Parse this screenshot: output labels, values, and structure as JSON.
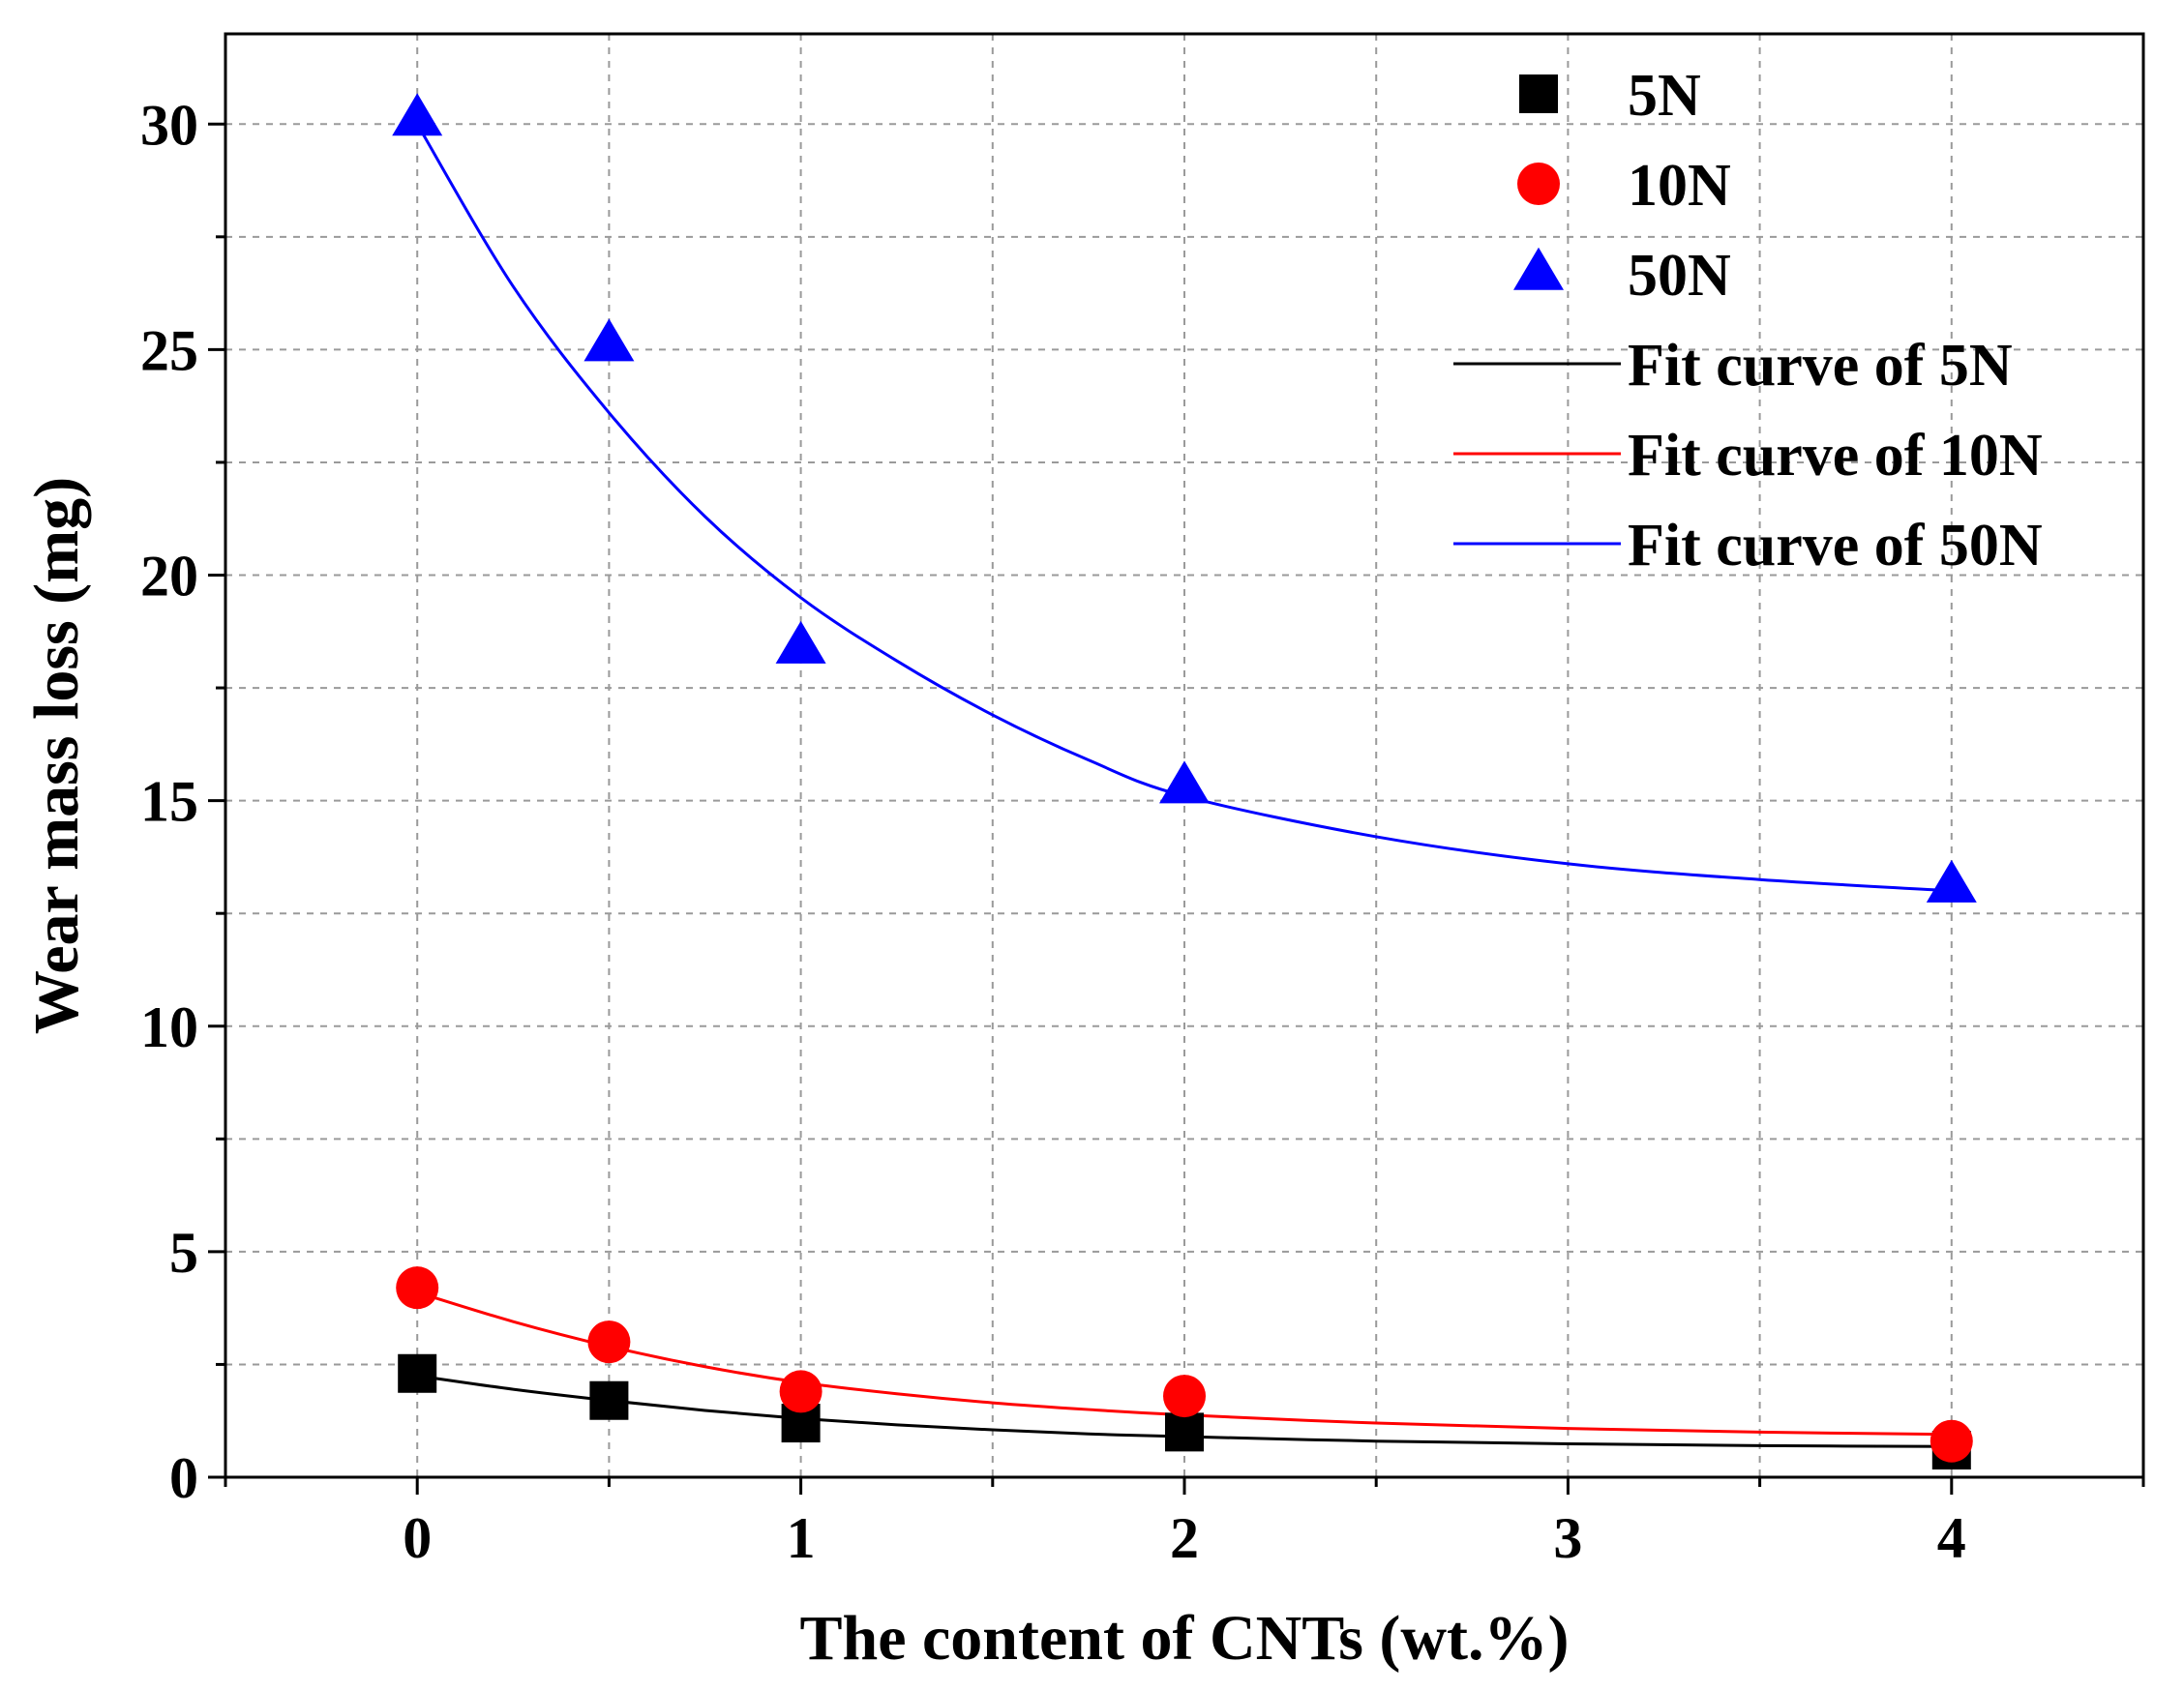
{
  "chart_data": {
    "type": "scatter",
    "title": "",
    "xlabel": "The content of CNTs (wt.%)",
    "ylabel": "Wear mass loss (mg)",
    "xlim": [
      -0.5,
      4.5
    ],
    "ylim": [
      0,
      32
    ],
    "xticks": [
      0,
      1,
      2,
      3,
      4
    ],
    "xtick_labels": [
      "0",
      "1",
      "2",
      "3",
      "4"
    ],
    "yticks": [
      0,
      5,
      10,
      15,
      20,
      25,
      30
    ],
    "ytick_labels": [
      "0",
      "5",
      "10",
      "15",
      "20",
      "25",
      "30"
    ],
    "grid": true,
    "legend_position": "top-right",
    "series": [
      {
        "name": "5N",
        "marker": "square",
        "color": "#000000",
        "x": [
          0,
          0.5,
          1,
          2,
          4
        ],
        "y": [
          2.3,
          1.7,
          1.2,
          1.0,
          0.6
        ]
      },
      {
        "name": "10N",
        "marker": "circle",
        "color": "#ff0000",
        "x": [
          0,
          0.5,
          1,
          2,
          4
        ],
        "y": [
          4.2,
          3.0,
          1.9,
          1.8,
          0.8
        ]
      },
      {
        "name": "50N",
        "marker": "triangle",
        "color": "#0000ff",
        "x": [
          0,
          0.5,
          1,
          2,
          4
        ],
        "y": [
          30.1,
          25.1,
          18.4,
          15.3,
          13.1
        ]
      }
    ],
    "fit_curves": [
      {
        "name": "Fit curve of 5N",
        "color": "#000000",
        "x": [
          0,
          0.25,
          0.5,
          0.75,
          1,
          1.25,
          1.5,
          1.75,
          2,
          2.5,
          3,
          3.5,
          4
        ],
        "y": [
          2.25,
          1.95,
          1.7,
          1.48,
          1.3,
          1.16,
          1.05,
          0.96,
          0.9,
          0.8,
          0.74,
          0.7,
          0.68
        ]
      },
      {
        "name": "Fit curve of 10N",
        "color": "#ff0000",
        "x": [
          0,
          0.25,
          0.5,
          0.75,
          1,
          1.25,
          1.5,
          1.75,
          2,
          2.5,
          3,
          3.5,
          4
        ],
        "y": [
          4.1,
          3.45,
          2.9,
          2.45,
          2.1,
          1.85,
          1.65,
          1.5,
          1.38,
          1.2,
          1.08,
          1.0,
          0.95
        ]
      },
      {
        "name": "Fit curve of 50N",
        "color": "#0000ff",
        "x": [
          0,
          0.25,
          0.5,
          0.75,
          1,
          1.25,
          1.5,
          1.75,
          2,
          2.5,
          3,
          3.5,
          4
        ],
        "y": [
          30.0,
          26.4,
          23.6,
          21.3,
          19.5,
          18.1,
          16.9,
          15.9,
          15.1,
          14.2,
          13.6,
          13.25,
          13.0
        ]
      }
    ]
  }
}
